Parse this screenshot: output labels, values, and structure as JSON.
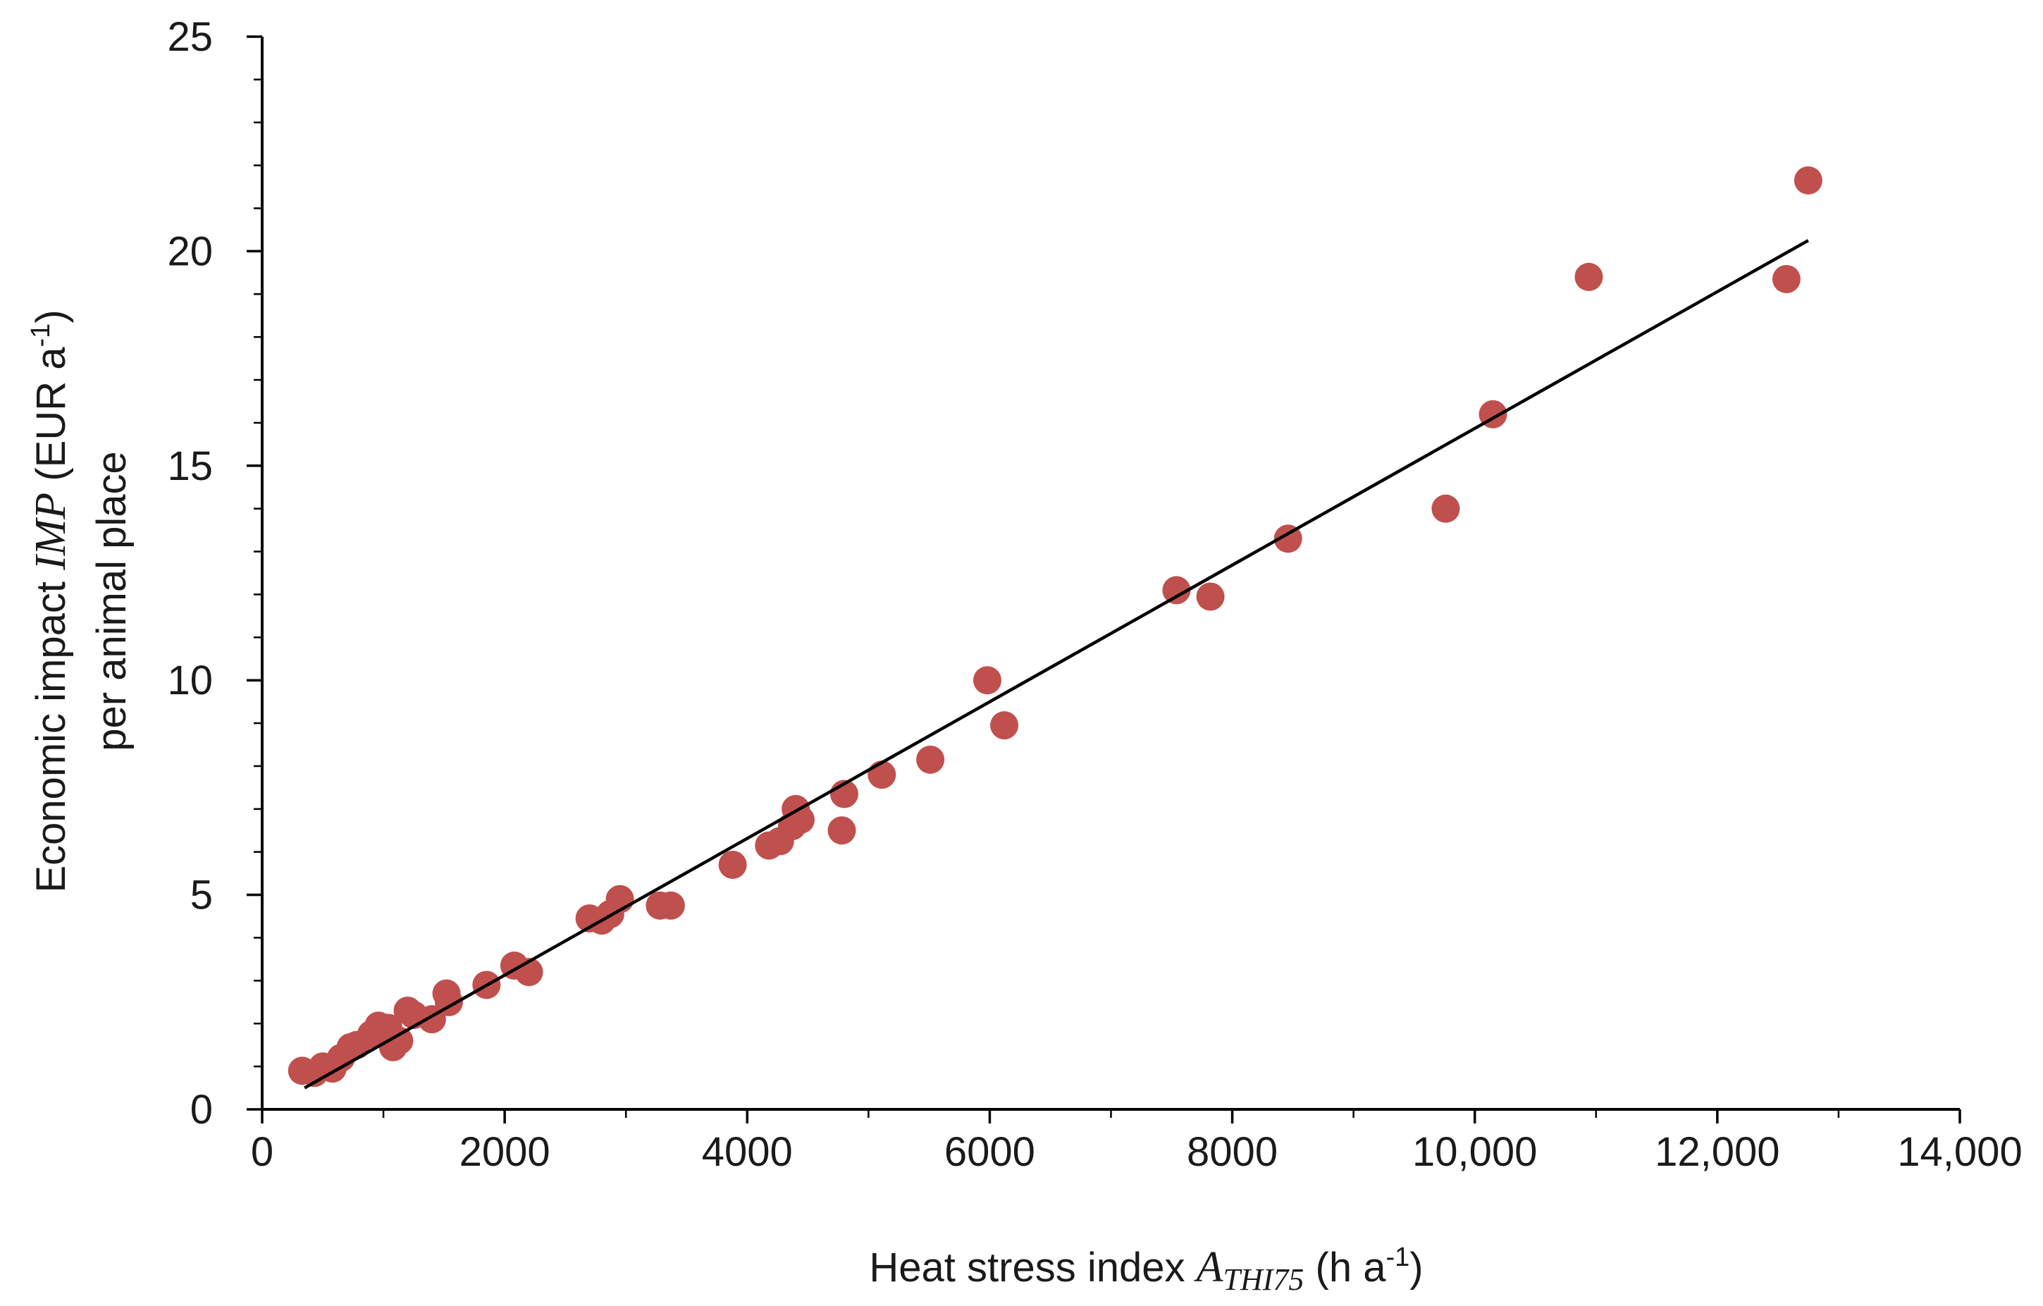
{
  "chart_data": {
    "type": "scatter",
    "title": "",
    "xlabel": {
      "prefix": "Heat stress index ",
      "symbol": "A",
      "subscript": "THI75",
      "unit_open": " (h a",
      "unit_sup": "-1",
      "unit_close": ")"
    },
    "ylabel": {
      "line1_prefix": "Economic impact  ",
      "line1_symbol": "IMP",
      "line1_unit_open": " (EUR a",
      "line1_unit_sup": "-1",
      "line1_unit_close": ")",
      "line2": "per animal place"
    },
    "xlim": [
      0,
      14000
    ],
    "ylim": [
      0,
      25
    ],
    "x_ticks": [
      0,
      2000,
      4000,
      6000,
      8000,
      10000,
      12000,
      14000
    ],
    "x_tick_labels": [
      "0",
      "2000",
      "4000",
      "6000",
      "8000",
      "10,000",
      "12,000",
      "14,000"
    ],
    "y_ticks": [
      0,
      5,
      10,
      15,
      20,
      25
    ],
    "y_tick_labels": [
      "0",
      "5",
      "10",
      "15",
      "20",
      "25"
    ],
    "grid": false,
    "legend": "none",
    "marker_color": "#c0504d",
    "trendline": {
      "x": [
        350,
        12750
      ],
      "y": [
        0.5,
        20.25
      ]
    },
    "points": [
      {
        "x": 330,
        "y": 0.9
      },
      {
        "x": 430,
        "y": 0.85
      },
      {
        "x": 500,
        "y": 1.0
      },
      {
        "x": 580,
        "y": 0.95
      },
      {
        "x": 650,
        "y": 1.2
      },
      {
        "x": 730,
        "y": 1.45
      },
      {
        "x": 780,
        "y": 1.5
      },
      {
        "x": 900,
        "y": 1.75
      },
      {
        "x": 960,
        "y": 1.95
      },
      {
        "x": 1040,
        "y": 1.9
      },
      {
        "x": 1080,
        "y": 1.45
      },
      {
        "x": 1130,
        "y": 1.6
      },
      {
        "x": 1200,
        "y": 2.3
      },
      {
        "x": 1250,
        "y": 2.2
      },
      {
        "x": 1400,
        "y": 2.1
      },
      {
        "x": 1520,
        "y": 2.7
      },
      {
        "x": 1540,
        "y": 2.5
      },
      {
        "x": 1850,
        "y": 2.9
      },
      {
        "x": 2080,
        "y": 3.35
      },
      {
        "x": 2200,
        "y": 3.2
      },
      {
        "x": 2700,
        "y": 4.45
      },
      {
        "x": 2800,
        "y": 4.4
      },
      {
        "x": 2870,
        "y": 4.55
      },
      {
        "x": 2950,
        "y": 4.9
      },
      {
        "x": 3280,
        "y": 4.75
      },
      {
        "x": 3370,
        "y": 4.75
      },
      {
        "x": 3880,
        "y": 5.7
      },
      {
        "x": 4180,
        "y": 6.15
      },
      {
        "x": 4270,
        "y": 6.25
      },
      {
        "x": 4370,
        "y": 6.6
      },
      {
        "x": 4400,
        "y": 7.0
      },
      {
        "x": 4440,
        "y": 6.75
      },
      {
        "x": 4780,
        "y": 6.5
      },
      {
        "x": 4800,
        "y": 7.35
      },
      {
        "x": 5110,
        "y": 7.8
      },
      {
        "x": 5510,
        "y": 8.15
      },
      {
        "x": 5980,
        "y": 10.0
      },
      {
        "x": 6120,
        "y": 8.95
      },
      {
        "x": 7540,
        "y": 12.1
      },
      {
        "x": 7820,
        "y": 11.95
      },
      {
        "x": 8460,
        "y": 13.3
      },
      {
        "x": 9760,
        "y": 14.0
      },
      {
        "x": 10150,
        "y": 16.2
      },
      {
        "x": 10940,
        "y": 19.4
      },
      {
        "x": 12570,
        "y": 19.35
      },
      {
        "x": 12750,
        "y": 21.65
      }
    ]
  }
}
